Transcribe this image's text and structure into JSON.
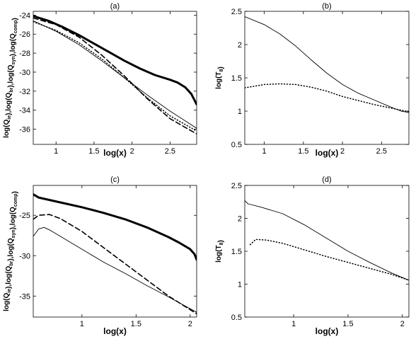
{
  "chart_data": [
    {
      "id": "a",
      "type": "line",
      "title": "(a)",
      "xlabel": "log(x)",
      "ylabel_parts": [
        {
          "t": "log(Q"
        },
        {
          "t": "ie",
          "sub": true
        },
        {
          "t": "),log(Q"
        },
        {
          "t": "br",
          "sub": true
        },
        {
          "t": "),log(Q"
        },
        {
          "t": "syn",
          "sub": true
        },
        {
          "t": "),log(Q"
        },
        {
          "t": "comp",
          "sub": true
        },
        {
          "t": ")"
        }
      ],
      "xlim": [
        0.7,
        2.85
      ],
      "ylim": [
        -37.6,
        -23.6
      ],
      "xticks": [
        1,
        1.5,
        2,
        2.5
      ],
      "xtick_labels": [
        "1",
        "1.5",
        "2",
        "2.5"
      ],
      "yticks": [
        -36,
        -34,
        -32,
        -30,
        -28,
        -26,
        -24
      ],
      "ytick_labels": [
        "-36",
        "-34",
        "-32",
        "-30",
        "-28",
        "-26",
        "-24"
      ],
      "series": [
        {
          "style": "thick",
          "x": [
            0.7,
            0.9,
            1.1,
            1.3,
            1.5,
            1.7,
            1.9,
            2.1,
            2.3,
            2.5,
            2.6,
            2.7,
            2.78,
            2.85
          ],
          "y": [
            -24.1,
            -24.6,
            -25.3,
            -26.1,
            -27.0,
            -27.9,
            -28.8,
            -29.6,
            -30.3,
            -30.8,
            -31.1,
            -31.6,
            -32.3,
            -33.4
          ]
        },
        {
          "style": "dashed",
          "x": [
            0.7,
            1.0,
            1.3,
            1.6,
            1.9,
            2.2,
            2.5,
            2.85
          ],
          "y": [
            -24.3,
            -25.0,
            -26.3,
            -28.2,
            -30.4,
            -32.8,
            -34.9,
            -36.5
          ]
        },
        {
          "style": "dotted",
          "x": [
            0.7,
            1.0,
            1.3,
            1.6,
            1.9,
            2.2,
            2.5,
            2.85
          ],
          "y": [
            -24.7,
            -25.6,
            -26.9,
            -28.6,
            -30.6,
            -32.7,
            -34.6,
            -36.2
          ]
        },
        {
          "style": "thin",
          "x": [
            0.7,
            1.0,
            1.3,
            1.6,
            1.9,
            2.2,
            2.5,
            2.85
          ],
          "y": [
            -24.6,
            -25.7,
            -27.1,
            -28.8,
            -30.6,
            -32.4,
            -34.1,
            -35.9
          ]
        }
      ]
    },
    {
      "id": "b",
      "type": "line",
      "title": "(b)",
      "xlabel": "log(x)",
      "ylabel_parts": [
        {
          "t": "log(T"
        },
        {
          "t": "8",
          "sub": true
        },
        {
          "t": ")"
        }
      ],
      "xlim": [
        0.75,
        2.85
      ],
      "ylim": [
        0.5,
        2.5
      ],
      "xticks": [
        1,
        1.5,
        2,
        2.5
      ],
      "xtick_labels": [
        "1",
        "1.5",
        "2",
        "2.5"
      ],
      "yticks": [
        0.5,
        1,
        1.5,
        2,
        2.5
      ],
      "ytick_labels": [
        "0.5",
        "1",
        "1.5",
        "2",
        "2.5"
      ],
      "series": [
        {
          "style": "thin",
          "x": [
            0.75,
            1.0,
            1.2,
            1.4,
            1.6,
            1.8,
            2.0,
            2.2,
            2.4,
            2.6,
            2.75,
            2.85
          ],
          "y": [
            2.42,
            2.3,
            2.16,
            1.98,
            1.77,
            1.57,
            1.4,
            1.27,
            1.17,
            1.07,
            1.0,
            0.98
          ]
        },
        {
          "style": "dotted",
          "x": [
            0.75,
            0.9,
            1.0,
            1.2,
            1.4,
            1.6,
            1.8,
            2.0,
            2.2,
            2.4,
            2.6,
            2.85
          ],
          "y": [
            1.35,
            1.38,
            1.4,
            1.41,
            1.4,
            1.36,
            1.3,
            1.22,
            1.16,
            1.1,
            1.05,
            0.99
          ]
        }
      ]
    },
    {
      "id": "c",
      "type": "line",
      "title": "(c)",
      "xlabel": "log(x)",
      "ylabel_parts": [
        {
          "t": "log(Q"
        },
        {
          "t": "ie",
          "sub": true
        },
        {
          "t": "),log(Q"
        },
        {
          "t": "br",
          "sub": true
        },
        {
          "t": "),log(Q"
        },
        {
          "t": "syn",
          "sub": true
        },
        {
          "t": "),log(Q"
        },
        {
          "t": "comp",
          "sub": true
        },
        {
          "t": ")"
        }
      ],
      "xlim": [
        0.55,
        2.06
      ],
      "ylim": [
        -37.6,
        -21.3
      ],
      "xticks": [
        1,
        1.5,
        2
      ],
      "xtick_labels": [
        "1",
        "1.5",
        "2"
      ],
      "yticks": [
        -35,
        -30,
        -25
      ],
      "ytick_labels": [
        "-35",
        "-30",
        "-25"
      ],
      "series": [
        {
          "style": "thick",
          "x": [
            0.55,
            0.6,
            0.8,
            1.0,
            1.2,
            1.4,
            1.6,
            1.8,
            1.9,
            2.0,
            2.04,
            2.06
          ],
          "y": [
            -22.4,
            -22.8,
            -23.4,
            -24.0,
            -24.7,
            -25.5,
            -26.5,
            -27.7,
            -28.4,
            -29.2,
            -29.8,
            -30.5
          ]
        },
        {
          "style": "dashed",
          "x": [
            0.55,
            0.6,
            0.7,
            0.8,
            1.0,
            1.2,
            1.4,
            1.6,
            1.8,
            2.06
          ],
          "y": [
            -25.5,
            -25.0,
            -24.9,
            -25.4,
            -27.0,
            -29.0,
            -31.0,
            -33.0,
            -35.0,
            -37.2
          ]
        },
        {
          "style": "thin",
          "x": [
            0.55,
            0.6,
            0.65,
            0.7,
            0.8,
            1.0,
            1.2,
            1.4,
            1.6,
            1.8,
            2.06
          ],
          "y": [
            -27.6,
            -26.7,
            -26.5,
            -26.8,
            -27.6,
            -29.2,
            -30.8,
            -32.2,
            -33.7,
            -35.1,
            -37.0
          ]
        }
      ]
    },
    {
      "id": "d",
      "type": "line",
      "title": "(d)",
      "xlabel": "log(x)",
      "ylabel_parts": [
        {
          "t": "log(T"
        },
        {
          "t": "8",
          "sub": true
        },
        {
          "t": ")"
        }
      ],
      "xlim": [
        0.55,
        2.06
      ],
      "ylim": [
        0.5,
        2.5
      ],
      "xticks": [
        1,
        1.5,
        2
      ],
      "xtick_labels": [
        "1",
        "1.5",
        "2"
      ],
      "yticks": [
        0.5,
        1,
        1.5,
        2,
        2.5
      ],
      "ytick_labels": [
        "0.5",
        "1",
        "1.5",
        "2",
        "2.5"
      ],
      "series": [
        {
          "style": "thin",
          "x": [
            0.55,
            0.58,
            0.7,
            0.9,
            1.1,
            1.3,
            1.5,
            1.7,
            1.9,
            2.06
          ],
          "y": [
            2.27,
            2.22,
            2.17,
            2.07,
            1.9,
            1.7,
            1.5,
            1.33,
            1.17,
            1.06
          ]
        },
        {
          "style": "dotted",
          "x": [
            0.6,
            0.65,
            0.75,
            0.9,
            1.1,
            1.3,
            1.5,
            1.7,
            1.9,
            2.06
          ],
          "y": [
            1.6,
            1.68,
            1.67,
            1.62,
            1.52,
            1.42,
            1.33,
            1.24,
            1.15,
            1.06
          ]
        }
      ]
    }
  ]
}
